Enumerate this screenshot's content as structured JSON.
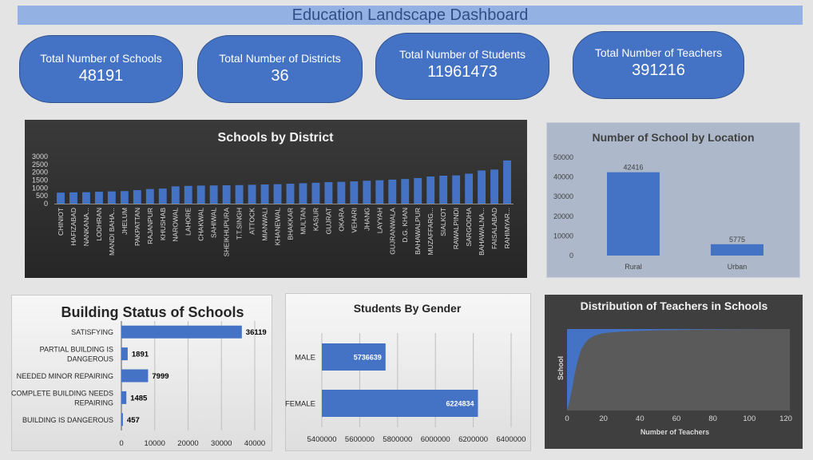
{
  "dashboard": {
    "title": "Education Landscape Dashboard"
  },
  "kpis": [
    {
      "label": "Total Number of Schools",
      "value": "48191"
    },
    {
      "label": "Total Number of Districts",
      "value": "36"
    },
    {
      "label": "Total Number of Students",
      "value": "11961473"
    },
    {
      "label": "Total Number of Teachers",
      "value": "391216"
    }
  ],
  "chart_data": [
    {
      "id": "district",
      "type": "bar",
      "title": "Schools by District",
      "categories": [
        "CHINIOT",
        "HAFIZABAD",
        "NANKANA...",
        "LODHRAN",
        "MANDI BAHA...",
        "JHELUM",
        "PAKPATTAN",
        "RAJANPUR",
        "KHUSHAB",
        "NAROWAL",
        "LAHORE",
        "CHAKWAL",
        "SAHIWAL",
        "SHEIKHUPURA",
        "T.T.SINGH",
        "ATTOCK",
        "MIANWALI",
        "KHANEWAL",
        "BHAKKAR",
        "MULTAN",
        "KASUR",
        "GUJRAT",
        "OKARA",
        "VEHARI",
        "JHANG",
        "LAYYAH",
        "GUJRANWALA",
        "D.G. KHAN",
        "BAHAWALPUR",
        "MUZAFFARG...",
        "SIALKOT",
        "RAWALPINDI",
        "SARGODHA",
        "BAHAWALNA...",
        "FAISALABAD",
        "RAHIMYAR..."
      ],
      "values": [
        700,
        720,
        730,
        760,
        780,
        800,
        860,
        930,
        960,
        1100,
        1130,
        1150,
        1160,
        1170,
        1180,
        1200,
        1220,
        1240,
        1270,
        1300,
        1330,
        1370,
        1390,
        1420,
        1460,
        1490,
        1530,
        1570,
        1630,
        1730,
        1780,
        1800,
        1910,
        2110,
        2170,
        2750
      ],
      "yticks": [
        "3000",
        "2500",
        "2000",
        "1500",
        "1000",
        "500",
        "0"
      ],
      "ylim": [
        0,
        3000
      ],
      "grid": false
    },
    {
      "id": "location",
      "type": "bar",
      "title": "Number of School by Location",
      "categories": [
        "Rural",
        "Urban"
      ],
      "values": [
        42416,
        5775
      ],
      "data_labels": [
        "42416",
        "5775"
      ],
      "yticks": [
        "50000",
        "40000",
        "30000",
        "20000",
        "10000",
        "0"
      ],
      "ylim": [
        0,
        50000
      ]
    },
    {
      "id": "building",
      "type": "bar",
      "orientation": "horizontal",
      "title": "Building Status of Schools",
      "categories": [
        "SATISFYING",
        "PARTIAL BUILDING IS|DANGEROUS",
        "NEEDED MINOR REPAIRING",
        "COMPLETE BUILDING NEEDS|REPAIRING",
        "BUILDING IS DANGEROUS"
      ],
      "values": [
        36119,
        1891,
        7999,
        1485,
        457
      ],
      "data_labels": [
        "36119",
        "1891",
        "7999",
        "1485",
        "457"
      ],
      "xticks": [
        "0",
        "10000",
        "20000",
        "30000",
        "40000"
      ],
      "xlim": [
        0,
        40000
      ],
      "grid": true
    },
    {
      "id": "gender",
      "type": "bar",
      "orientation": "horizontal",
      "title": "Students By Gender",
      "categories": [
        "MALE",
        "FEMALE"
      ],
      "values": [
        5736639,
        6224834
      ],
      "data_labels": [
        "5736639",
        "6224834"
      ],
      "xticks": [
        "5400000",
        "5600000",
        "5800000",
        "6000000",
        "6200000",
        "6400000"
      ],
      "xlim": [
        5400000,
        6400000
      ],
      "grid": true
    },
    {
      "id": "teachers",
      "type": "area",
      "title": "Distribution of Teachers in Schools",
      "xlabel": "Number of Teachers",
      "ylabel": "School",
      "xticks": [
        "0",
        "20",
        "40",
        "60",
        "80",
        "100",
        "120"
      ],
      "xlim": [
        0,
        120
      ],
      "curve_points": [
        [
          0,
          0
        ],
        [
          1,
          0.08
        ],
        [
          2,
          0.18
        ],
        [
          3,
          0.3
        ],
        [
          4,
          0.42
        ],
        [
          5,
          0.53
        ],
        [
          6,
          0.62
        ],
        [
          7,
          0.7
        ],
        [
          8,
          0.76
        ],
        [
          10,
          0.83
        ],
        [
          12,
          0.88
        ],
        [
          15,
          0.92
        ],
        [
          20,
          0.95
        ],
        [
          30,
          0.97
        ],
        [
          50,
          0.985
        ],
        [
          80,
          0.995
        ],
        [
          110,
          1.0
        ]
      ]
    }
  ],
  "colors": {
    "bar": "#4472c4",
    "title_bar": "#94b1e3",
    "dark_panel": "#3f3f3f",
    "location_panel": "#adb9ca"
  }
}
